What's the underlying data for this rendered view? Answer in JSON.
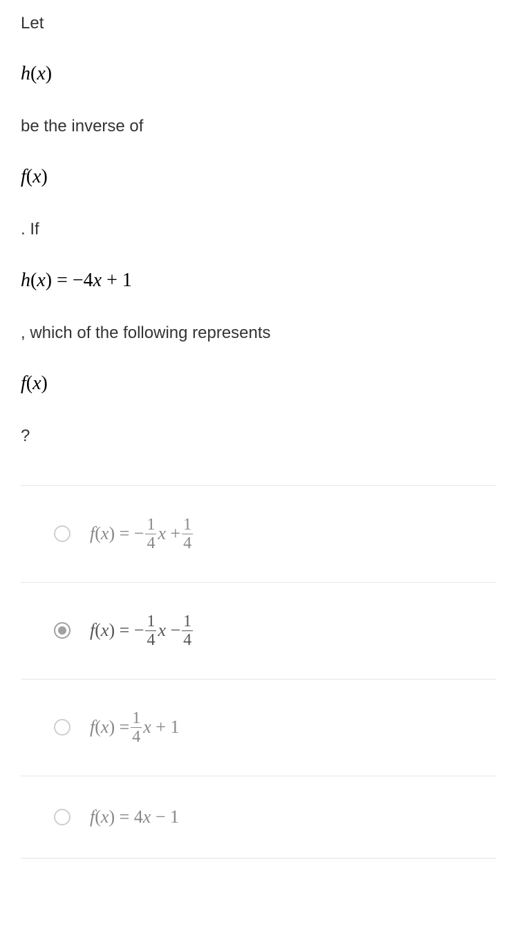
{
  "question": {
    "line1": "Let",
    "line2_math": "h(x)",
    "line3": "be the inverse of",
    "line4_math": "f(x)",
    "line5": ". If",
    "line6_math": "h(x) = −4x + 1",
    "line7": ", which of the following represents",
    "line8_math": "f(x)",
    "line9": "?"
  },
  "options": [
    {
      "selected": false,
      "prefix": "f(x) = −",
      "frac1_num": "1",
      "frac1_den": "4",
      "mid": "x + ",
      "frac2_num": "1",
      "frac2_den": "4",
      "suffix": "",
      "type": "two_frac"
    },
    {
      "selected": true,
      "prefix": "f(x) = −",
      "frac1_num": "1",
      "frac1_den": "4",
      "mid": "x − ",
      "frac2_num": "1",
      "frac2_den": "4",
      "suffix": "",
      "type": "two_frac"
    },
    {
      "selected": false,
      "prefix": "f(x) = ",
      "frac1_num": "1",
      "frac1_den": "4",
      "mid": "x + 1",
      "frac2_num": "",
      "frac2_den": "",
      "suffix": "",
      "type": "one_frac"
    },
    {
      "selected": false,
      "prefix": "f(x) = 4x − 1",
      "frac1_num": "",
      "frac1_den": "",
      "mid": "",
      "frac2_num": "",
      "frac2_den": "",
      "suffix": "",
      "type": "plain"
    }
  ],
  "colors": {
    "text": "#333333",
    "math_black": "#000000",
    "option_gray": "#888888",
    "option_selected": "#555555",
    "divider": "#e6e6e6",
    "radio_border": "#cfcfcf",
    "radio_selected": "#a0a0a0",
    "background": "#ffffff"
  }
}
